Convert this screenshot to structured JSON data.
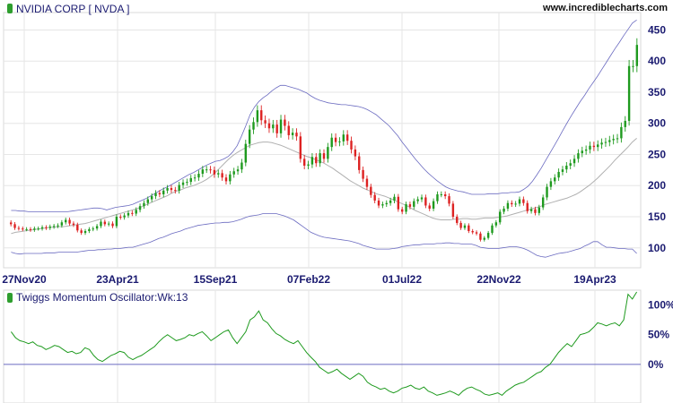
{
  "header": {
    "title": "NVIDIA CORP [ NVDA ]",
    "site": "www.incrediblecharts.com",
    "marker_color": "#2e9e2e"
  },
  "colors": {
    "up_candle": "#1e9a1e",
    "down_candle": "#dd2222",
    "bands": "#6a6ac0",
    "mid_band": "#b0b0b0",
    "oscillator": "#1e9a1e",
    "zero_line": "#6a6ac0",
    "grid": "#e6e6e6",
    "axis_text": "#1a1a70"
  },
  "chart_data": [
    {
      "type": "candlestick",
      "title": "NVIDIA CORP [ NVDA ]",
      "xlabel": "",
      "ylabel": "",
      "x_ticks": [
        "27Nov20",
        "23Apr21",
        "15Sep21",
        "07Feb22",
        "01Jul22",
        "22Nov22",
        "19Apr23"
      ],
      "y_ticks": [
        100,
        150,
        200,
        250,
        300,
        350,
        400,
        450
      ],
      "ylim": [
        68,
        478
      ],
      "grid": true,
      "legend": "none",
      "overlays": [
        "upper band",
        "middle band",
        "lower band"
      ],
      "series": [
        {
          "name": "close",
          "values": [
            138,
            132,
            131,
            130,
            130,
            129,
            131,
            131,
            133,
            132,
            134,
            135,
            136,
            141,
            145,
            139,
            137,
            128,
            124,
            127,
            130,
            131,
            135,
            142,
            138,
            139,
            135,
            150,
            149,
            152,
            156,
            155,
            161,
            167,
            172,
            178,
            183,
            188,
            186,
            192,
            196,
            193,
            192,
            201,
            205,
            206,
            212,
            213,
            219,
            226,
            226,
            225,
            218,
            220,
            213,
            207,
            218,
            223,
            226,
            237,
            267,
            290,
            302,
            321,
            305,
            300,
            292,
            298,
            284,
            306,
            296,
            281,
            285,
            279,
            243,
            232,
            234,
            246,
            236,
            252,
            243,
            262,
            277,
            270,
            271,
            282,
            272,
            258,
            247,
            225,
            211,
            198,
            185,
            176,
            168,
            170,
            172,
            176,
            182,
            162,
            158,
            170,
            166,
            175,
            178,
            181,
            168,
            163,
            175,
            186,
            186,
            183,
            171,
            150,
            140,
            132,
            136,
            127,
            125,
            123,
            113,
            116,
            124,
            136,
            141,
            158,
            163,
            172,
            170,
            171,
            178,
            172,
            159,
            162,
            156,
            165,
            181,
            198,
            207,
            213,
            222,
            226,
            232,
            236,
            243,
            252,
            256,
            258,
            264,
            262,
            266,
            269,
            270,
            273,
            275,
            276,
            294,
            304,
            392,
            392,
            426
          ]
        },
        {
          "name": "upper band",
          "values": [
            160,
            160,
            159,
            159,
            158,
            158,
            158,
            158,
            158,
            158,
            158,
            158,
            158,
            158,
            159,
            160,
            161,
            162,
            163,
            164,
            164,
            163,
            161,
            163,
            165,
            166,
            167,
            168,
            170,
            173,
            176,
            179,
            183,
            187,
            191,
            195,
            198,
            202,
            206,
            210,
            214,
            218,
            221,
            225,
            229,
            233,
            236,
            239,
            240,
            243,
            247,
            254,
            264,
            279,
            296,
            314,
            326,
            335,
            341,
            346,
            352,
            357,
            361,
            361,
            359,
            357,
            355,
            352,
            349,
            344,
            340,
            337,
            335,
            333,
            332,
            331,
            330,
            330,
            329,
            328,
            327,
            325,
            322,
            318,
            314,
            308,
            302,
            296,
            288,
            280,
            270,
            261,
            252,
            243,
            235,
            227,
            220,
            214,
            208,
            203,
            198,
            195,
            193,
            191,
            190,
            188,
            186,
            186,
            186,
            186,
            187,
            187,
            187,
            188,
            188,
            189,
            189,
            190,
            194,
            199,
            207,
            217,
            228,
            240,
            252,
            264,
            276,
            289,
            301,
            313,
            324,
            335,
            345,
            356,
            366,
            376,
            387,
            398,
            409,
            420,
            430,
            441,
            451,
            461,
            466
          ]
        },
        {
          "name": "middle band",
          "values": [
            123,
            125,
            126,
            127,
            128,
            129,
            130,
            131,
            132,
            133,
            133,
            134,
            134,
            135,
            136,
            137,
            138,
            139,
            141,
            143,
            145,
            147,
            149,
            151,
            153,
            155,
            157,
            159,
            161,
            163,
            166,
            169,
            172,
            175,
            178,
            181,
            184,
            188,
            191,
            193,
            196,
            198,
            200,
            203,
            206,
            210,
            215,
            221,
            228,
            235,
            242,
            248,
            253,
            257,
            261,
            265,
            267,
            269,
            270,
            270,
            269,
            267,
            265,
            262,
            259,
            256,
            253,
            250,
            247,
            245,
            242,
            239,
            236,
            232,
            228,
            223,
            218,
            213,
            208,
            204,
            200,
            196,
            193,
            190,
            187,
            185,
            183,
            180,
            177,
            174,
            171,
            168,
            164,
            160,
            157,
            154,
            151,
            148,
            146,
            145,
            145,
            145,
            146,
            146,
            147,
            147,
            146,
            146,
            147,
            148,
            148,
            148,
            149,
            150,
            151,
            153,
            155,
            157,
            159,
            161,
            163,
            165,
            167,
            170,
            172,
            174,
            176,
            178,
            180,
            183,
            186,
            190,
            195,
            200,
            206,
            212,
            219,
            226,
            233,
            241,
            248,
            255,
            262,
            270,
            276
          ]
        },
        {
          "name": "lower band",
          "values": [
            93,
            91,
            90,
            91,
            91,
            91,
            91,
            91,
            92,
            92,
            92,
            93,
            93,
            93,
            93,
            93,
            94,
            95,
            96,
            96,
            97,
            97,
            98,
            98,
            99,
            99,
            100,
            101,
            101,
            103,
            105,
            107,
            109,
            112,
            115,
            117,
            120,
            123,
            125,
            127,
            130,
            132,
            134,
            136,
            137,
            138,
            139,
            140,
            140,
            141,
            141,
            142,
            144,
            146,
            149,
            151,
            152,
            153,
            155,
            155,
            155,
            155,
            153,
            151,
            148,
            145,
            140,
            135,
            130,
            125,
            122,
            119,
            117,
            116,
            115,
            114,
            113,
            112,
            111,
            109,
            107,
            104,
            102,
            100,
            98,
            98,
            98,
            98,
            99,
            100,
            102,
            103,
            104,
            105,
            105,
            106,
            106,
            106,
            107,
            107,
            108,
            108,
            107,
            107,
            106,
            106,
            106,
            104,
            101,
            100,
            99,
            99,
            99,
            100,
            101,
            102,
            102,
            101,
            99,
            96,
            92,
            88,
            86,
            85,
            87,
            89,
            91,
            92,
            93,
            95,
            97,
            99,
            103,
            106,
            110,
            110,
            105,
            101,
            101,
            100,
            99,
            99,
            98,
            98,
            91
          ]
        }
      ]
    },
    {
      "type": "line",
      "title": "Twiggs Momentum Oscillator:Wk:13",
      "xlabel": "",
      "ylabel": "",
      "y_ticks": [
        "100%",
        "50%",
        "0%"
      ],
      "ylim": [
        -65,
        125
      ],
      "reference_line": 0,
      "legend": "none",
      "series": [
        {
          "name": "Twiggs Momentum Oscillator:Wk:13",
          "values": [
            55,
            45,
            40,
            38,
            35,
            38,
            32,
            30,
            25,
            28,
            32,
            30,
            25,
            20,
            22,
            18,
            20,
            28,
            25,
            15,
            8,
            5,
            10,
            15,
            18,
            22,
            20,
            12,
            8,
            12,
            15,
            20,
            25,
            30,
            38,
            45,
            50,
            45,
            40,
            42,
            45,
            50,
            48,
            52,
            55,
            48,
            40,
            45,
            50,
            55,
            58,
            45,
            35,
            45,
            55,
            75,
            80,
            90,
            75,
            70,
            60,
            52,
            48,
            42,
            38,
            35,
            40,
            30,
            20,
            12,
            5,
            -5,
            -10,
            -15,
            -12,
            -8,
            -15,
            -20,
            -25,
            -20,
            -15,
            -20,
            -30,
            -35,
            -38,
            -42,
            -40,
            -45,
            -48,
            -45,
            -40,
            -38,
            -35,
            -40,
            -42,
            -38,
            -45,
            -48,
            -52,
            -50,
            -48,
            -45,
            -48,
            -52,
            -45,
            -40,
            -38,
            -42,
            -45,
            -50,
            -52,
            -50,
            -48,
            -52,
            -45,
            -40,
            -35,
            -32,
            -30,
            -25,
            -20,
            -15,
            -12,
            -5,
            0,
            10,
            20,
            28,
            35,
            30,
            40,
            50,
            52,
            55,
            62,
            70,
            68,
            65,
            68,
            70,
            65,
            75,
            118,
            110,
            122
          ]
        }
      ]
    }
  ]
}
